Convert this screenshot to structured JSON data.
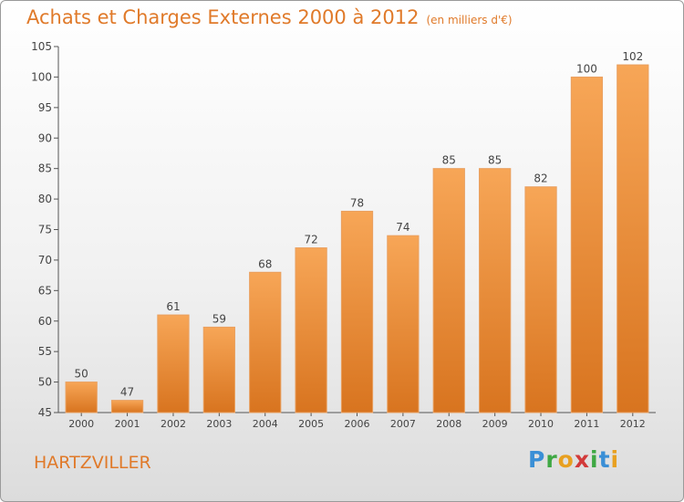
{
  "title": "Achats et Charges Externes 2000 à 2012",
  "unit_label": "(en milliers d'€)",
  "town": "HARTZVILLER",
  "brand": {
    "letters": [
      {
        "char": "P",
        "color": "#3a8fd6"
      },
      {
        "char": "r",
        "color": "#3fa844"
      },
      {
        "char": "o",
        "color": "#e8a020"
      },
      {
        "char": "x",
        "color": "#d23a3a"
      },
      {
        "char": "i",
        "color": "#3fa844"
      },
      {
        "char": "t",
        "color": "#3a8fd6"
      },
      {
        "char": "i",
        "color": "#e8a020"
      }
    ]
  },
  "colors": {
    "bar_top": "#f7a657",
    "bar_bottom": "#d8741f",
    "text": "#e07a2a",
    "axis": "#555555"
  },
  "chart_data": {
    "type": "bar",
    "categories": [
      "2000",
      "2001",
      "2002",
      "2003",
      "2004",
      "2005",
      "2006",
      "2007",
      "2008",
      "2009",
      "2010",
      "2011",
      "2012"
    ],
    "values": [
      50,
      47,
      61,
      59,
      68,
      72,
      78,
      74,
      85,
      85,
      82,
      100,
      102
    ],
    "ylim": [
      45,
      105
    ],
    "yticks": [
      45,
      50,
      55,
      60,
      65,
      70,
      75,
      80,
      85,
      90,
      95,
      100,
      105
    ],
    "grid": false,
    "legend": "none"
  }
}
